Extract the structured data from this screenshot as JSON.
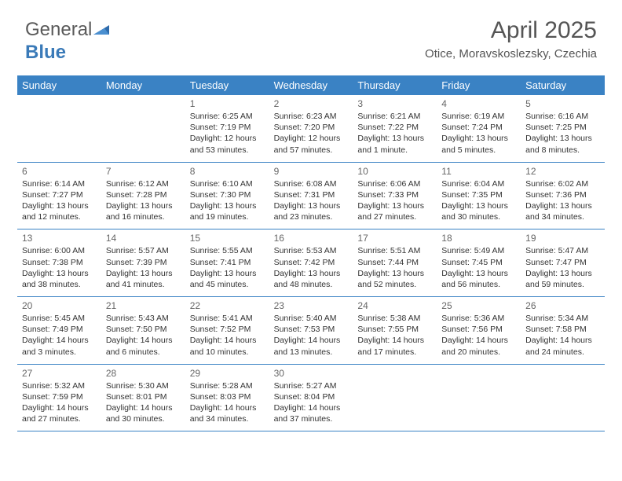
{
  "brand": {
    "part1": "General",
    "part2": "Blue"
  },
  "title": "April 2025",
  "location": "Otice, Moravskoslezsky, Czechia",
  "colors": {
    "header_bg": "#3a82c4",
    "header_text": "#ffffff",
    "border": "#3a82c4",
    "text": "#333333",
    "daynum": "#666666",
    "logo_gray": "#5a5a5a",
    "logo_blue": "#3a7ab8"
  },
  "day_labels": [
    "Sunday",
    "Monday",
    "Tuesday",
    "Wednesday",
    "Thursday",
    "Friday",
    "Saturday"
  ],
  "weeks": [
    [
      null,
      null,
      {
        "n": "1",
        "sr": "6:25 AM",
        "ss": "7:19 PM",
        "dl": "12 hours and 53 minutes."
      },
      {
        "n": "2",
        "sr": "6:23 AM",
        "ss": "7:20 PM",
        "dl": "12 hours and 57 minutes."
      },
      {
        "n": "3",
        "sr": "6:21 AM",
        "ss": "7:22 PM",
        "dl": "13 hours and 1 minute."
      },
      {
        "n": "4",
        "sr": "6:19 AM",
        "ss": "7:24 PM",
        "dl": "13 hours and 5 minutes."
      },
      {
        "n": "5",
        "sr": "6:16 AM",
        "ss": "7:25 PM",
        "dl": "13 hours and 8 minutes."
      }
    ],
    [
      {
        "n": "6",
        "sr": "6:14 AM",
        "ss": "7:27 PM",
        "dl": "13 hours and 12 minutes."
      },
      {
        "n": "7",
        "sr": "6:12 AM",
        "ss": "7:28 PM",
        "dl": "13 hours and 16 minutes."
      },
      {
        "n": "8",
        "sr": "6:10 AM",
        "ss": "7:30 PM",
        "dl": "13 hours and 19 minutes."
      },
      {
        "n": "9",
        "sr": "6:08 AM",
        "ss": "7:31 PM",
        "dl": "13 hours and 23 minutes."
      },
      {
        "n": "10",
        "sr": "6:06 AM",
        "ss": "7:33 PM",
        "dl": "13 hours and 27 minutes."
      },
      {
        "n": "11",
        "sr": "6:04 AM",
        "ss": "7:35 PM",
        "dl": "13 hours and 30 minutes."
      },
      {
        "n": "12",
        "sr": "6:02 AM",
        "ss": "7:36 PM",
        "dl": "13 hours and 34 minutes."
      }
    ],
    [
      {
        "n": "13",
        "sr": "6:00 AM",
        "ss": "7:38 PM",
        "dl": "13 hours and 38 minutes."
      },
      {
        "n": "14",
        "sr": "5:57 AM",
        "ss": "7:39 PM",
        "dl": "13 hours and 41 minutes."
      },
      {
        "n": "15",
        "sr": "5:55 AM",
        "ss": "7:41 PM",
        "dl": "13 hours and 45 minutes."
      },
      {
        "n": "16",
        "sr": "5:53 AM",
        "ss": "7:42 PM",
        "dl": "13 hours and 48 minutes."
      },
      {
        "n": "17",
        "sr": "5:51 AM",
        "ss": "7:44 PM",
        "dl": "13 hours and 52 minutes."
      },
      {
        "n": "18",
        "sr": "5:49 AM",
        "ss": "7:45 PM",
        "dl": "13 hours and 56 minutes."
      },
      {
        "n": "19",
        "sr": "5:47 AM",
        "ss": "7:47 PM",
        "dl": "13 hours and 59 minutes."
      }
    ],
    [
      {
        "n": "20",
        "sr": "5:45 AM",
        "ss": "7:49 PM",
        "dl": "14 hours and 3 minutes."
      },
      {
        "n": "21",
        "sr": "5:43 AM",
        "ss": "7:50 PM",
        "dl": "14 hours and 6 minutes."
      },
      {
        "n": "22",
        "sr": "5:41 AM",
        "ss": "7:52 PM",
        "dl": "14 hours and 10 minutes."
      },
      {
        "n": "23",
        "sr": "5:40 AM",
        "ss": "7:53 PM",
        "dl": "14 hours and 13 minutes."
      },
      {
        "n": "24",
        "sr": "5:38 AM",
        "ss": "7:55 PM",
        "dl": "14 hours and 17 minutes."
      },
      {
        "n": "25",
        "sr": "5:36 AM",
        "ss": "7:56 PM",
        "dl": "14 hours and 20 minutes."
      },
      {
        "n": "26",
        "sr": "5:34 AM",
        "ss": "7:58 PM",
        "dl": "14 hours and 24 minutes."
      }
    ],
    [
      {
        "n": "27",
        "sr": "5:32 AM",
        "ss": "7:59 PM",
        "dl": "14 hours and 27 minutes."
      },
      {
        "n": "28",
        "sr": "5:30 AM",
        "ss": "8:01 PM",
        "dl": "14 hours and 30 minutes."
      },
      {
        "n": "29",
        "sr": "5:28 AM",
        "ss": "8:03 PM",
        "dl": "14 hours and 34 minutes."
      },
      {
        "n": "30",
        "sr": "5:27 AM",
        "ss": "8:04 PM",
        "dl": "14 hours and 37 minutes."
      },
      null,
      null,
      null
    ]
  ],
  "labels": {
    "sunrise": "Sunrise:",
    "sunset": "Sunset:",
    "daylight": "Daylight:"
  }
}
